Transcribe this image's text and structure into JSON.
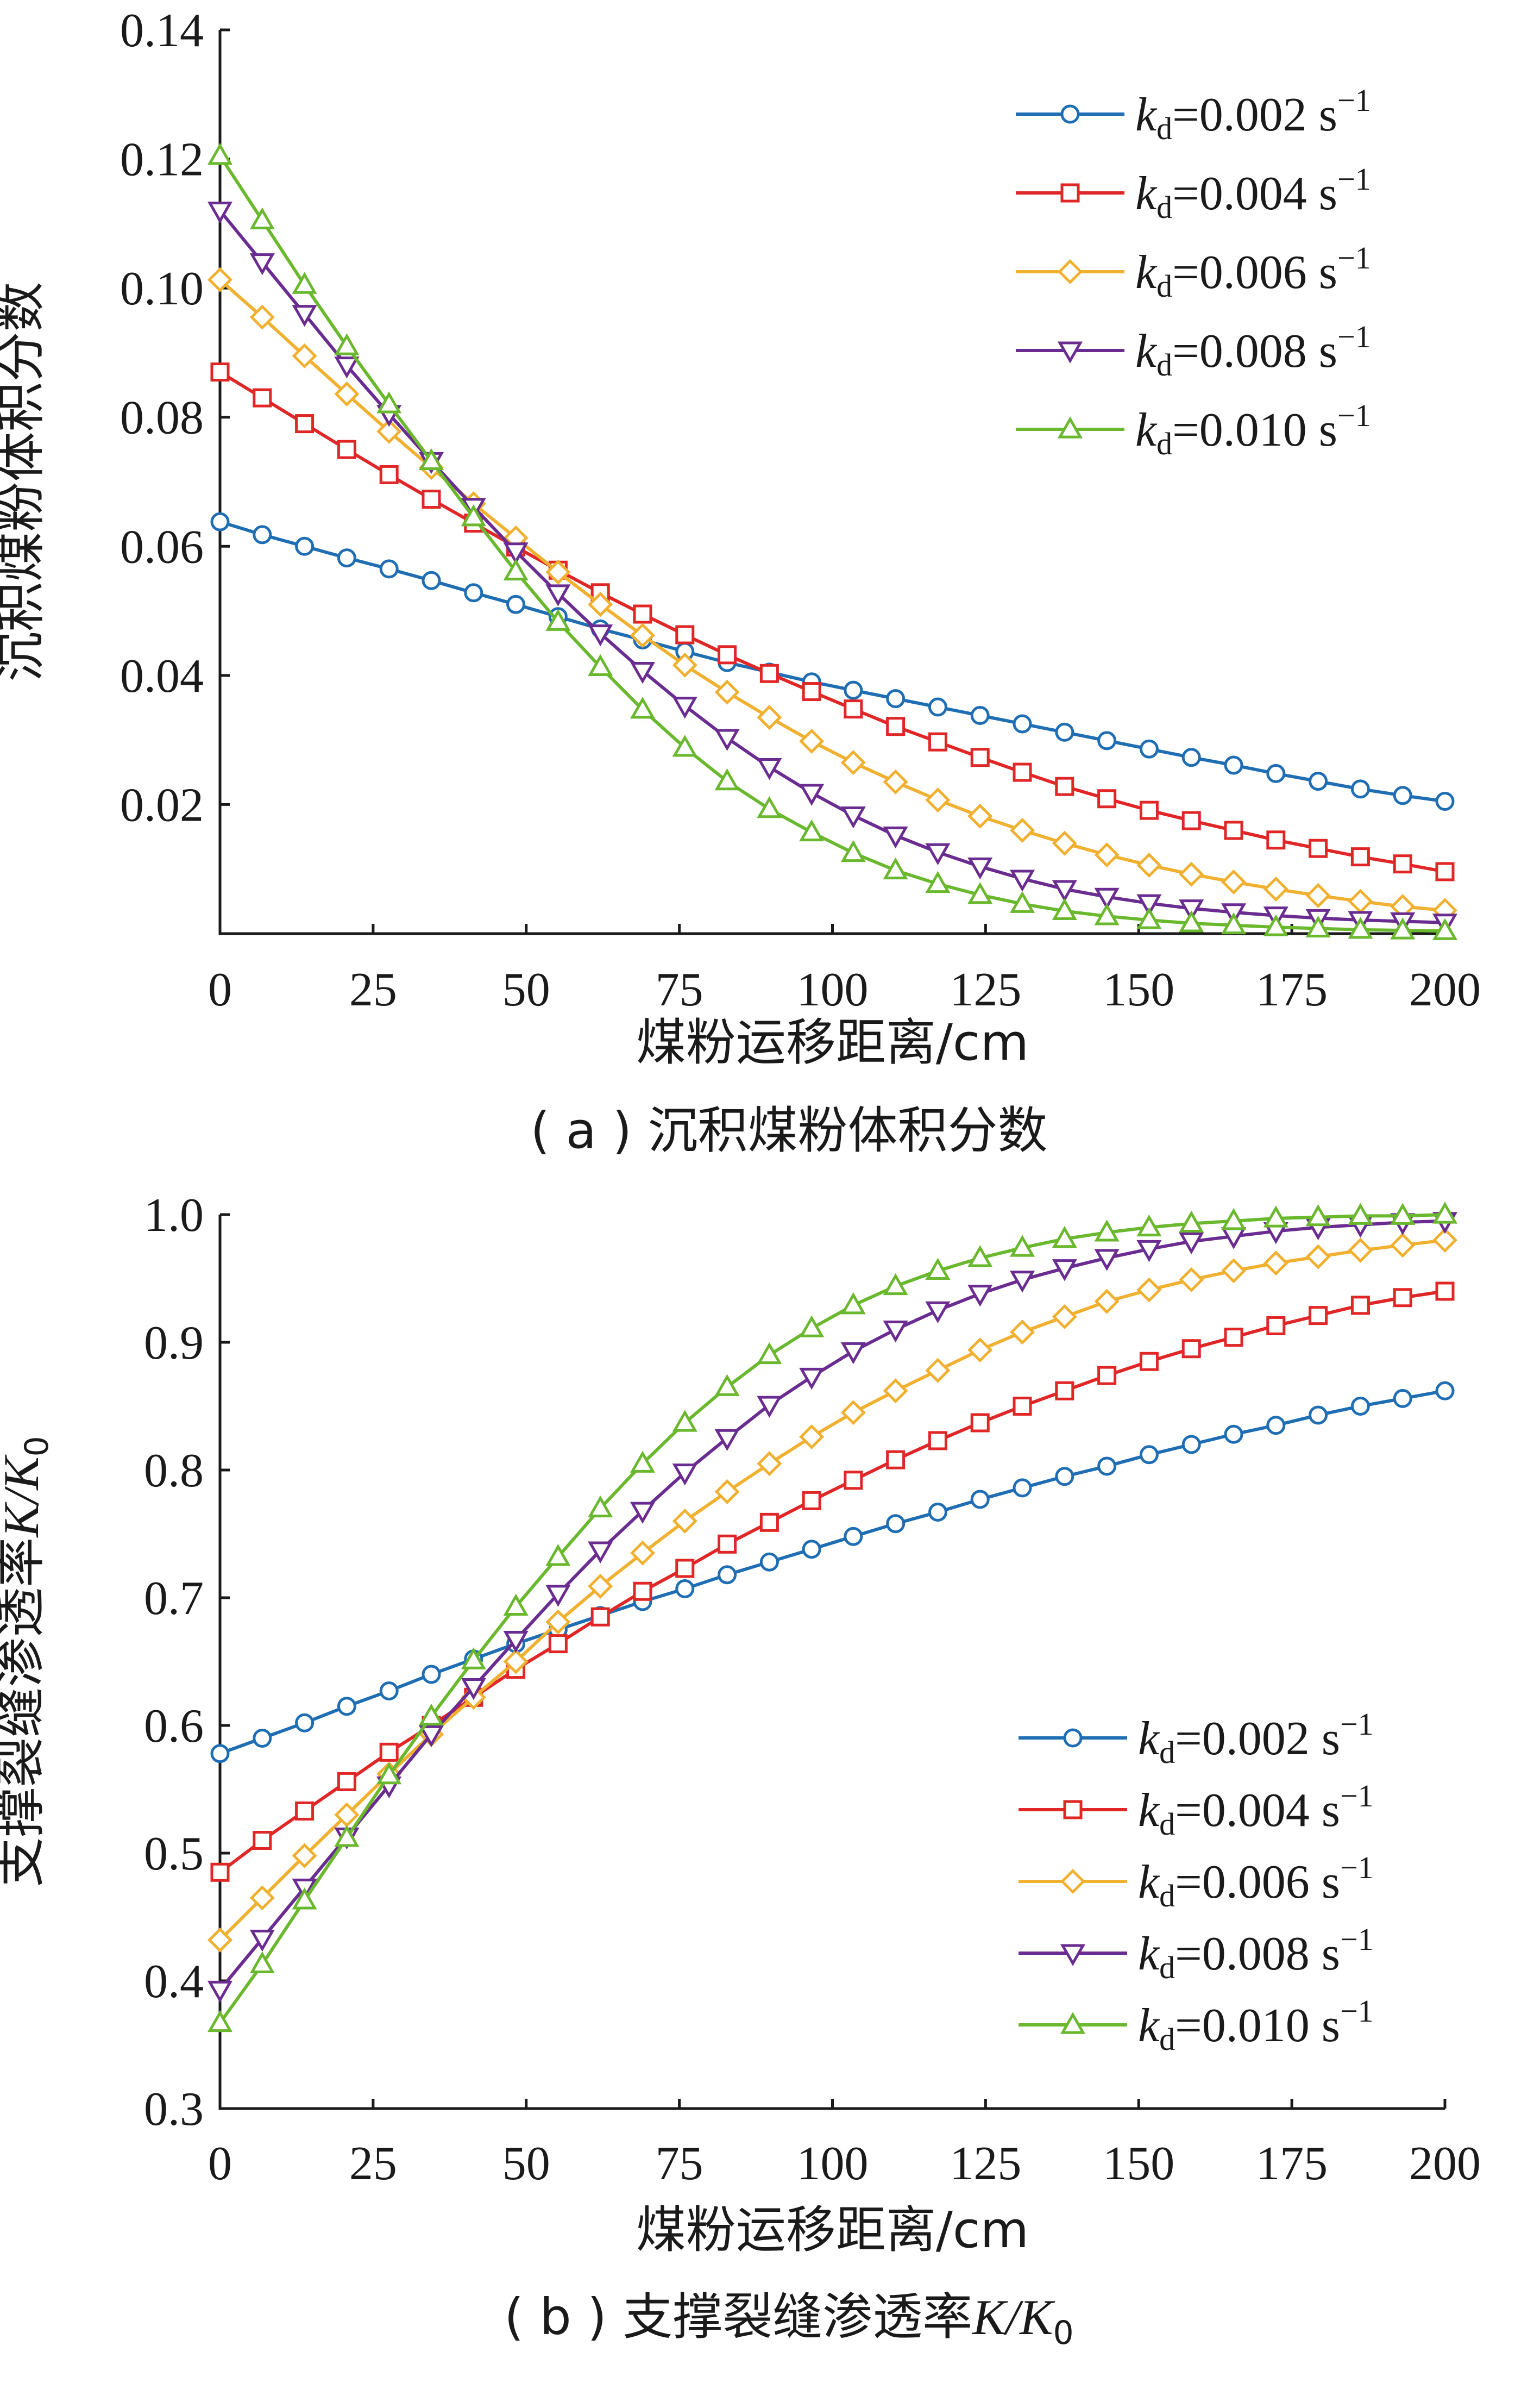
{
  "chart_data": [
    {
      "panel": "a",
      "type": "line",
      "caption": "( a ) 沉积煤粉体积分数",
      "xlabel": "煤粉运移距离/cm",
      "ylabel": "沉积煤粉体积分数",
      "xlim": [
        0,
        200
      ],
      "ylim": [
        0,
        0.14
      ],
      "xticks": [
        "0",
        "25",
        "50",
        "75",
        "100",
        "125",
        "150",
        "175",
        "200"
      ],
      "yticks": [
        "0.02",
        "0.04",
        "0.06",
        "0.08",
        "0.10",
        "0.12",
        "0.14"
      ],
      "legend_position": "top-right",
      "x": [
        0,
        6.9,
        13.8,
        20.7,
        27.6,
        34.5,
        41.4,
        48.3,
        55.2,
        62.1,
        69.0,
        75.9,
        82.8,
        89.7,
        96.6,
        103.4,
        110.3,
        117.2,
        124.1,
        131.0,
        137.9,
        144.8,
        151.7,
        158.6,
        165.5,
        172.4,
        179.3,
        186.2,
        193.1,
        200
      ],
      "series": [
        {
          "name": "kd=0.002 s-1",
          "label_main": "k",
          "label_sub": "d",
          "label_rest": "=0.002 s",
          "label_sup": "−1",
          "color": "#1f6eb4",
          "marker": "circle",
          "values": [
            0.0638,
            0.0618,
            0.06,
            0.0582,
            0.0565,
            0.0547,
            0.0528,
            0.051,
            0.0491,
            0.0472,
            0.0455,
            0.0437,
            0.042,
            0.0405,
            0.039,
            0.0377,
            0.0364,
            0.0351,
            0.0338,
            0.0325,
            0.0312,
            0.0299,
            0.0286,
            0.0273,
            0.0261,
            0.0248,
            0.0236,
            0.0224,
            0.0214,
            0.0205
          ]
        },
        {
          "name": "kd=0.004 s-1",
          "label_main": "k",
          "label_sub": "d",
          "label_rest": "=0.004 s",
          "label_sup": "−1",
          "color": "#e02626",
          "marker": "square",
          "values": [
            0.087,
            0.083,
            0.079,
            0.075,
            0.0711,
            0.0673,
            0.0636,
            0.0599,
            0.0563,
            0.0528,
            0.0495,
            0.0463,
            0.0432,
            0.0403,
            0.0375,
            0.0348,
            0.0321,
            0.0297,
            0.0273,
            0.025,
            0.0228,
            0.0209,
            0.0191,
            0.0175,
            0.016,
            0.0145,
            0.0132,
            0.0119,
            0.0108,
            0.0096
          ]
        },
        {
          "name": "kd=0.006 s-1",
          "label_main": "k",
          "label_sub": "d",
          "label_rest": "=0.006 s",
          "label_sup": "−1",
          "color": "#f0b030",
          "marker": "diamond",
          "values": [
            0.1013,
            0.0955,
            0.0895,
            0.0836,
            0.0778,
            0.0722,
            0.0666,
            0.0613,
            0.056,
            0.051,
            0.0462,
            0.0416,
            0.0374,
            0.0335,
            0.0298,
            0.0265,
            0.0235,
            0.0207,
            0.0182,
            0.016,
            0.014,
            0.0122,
            0.0106,
            0.0092,
            0.008,
            0.0069,
            0.0059,
            0.005,
            0.0042,
            0.0036
          ]
        },
        {
          "name": "kd=0.008 s-1",
          "label_main": "k",
          "label_sub": "d",
          "label_rest": "=0.008 s",
          "label_sup": "−1",
          "color": "#6a2c91",
          "marker": "triangle-down",
          "values": [
            0.112,
            0.104,
            0.096,
            0.088,
            0.0805,
            0.0732,
            0.0661,
            0.0592,
            0.0527,
            0.0465,
            0.0407,
            0.0353,
            0.0303,
            0.0258,
            0.0218,
            0.0183,
            0.0152,
            0.0126,
            0.0104,
            0.0085,
            0.0069,
            0.0057,
            0.0047,
            0.0039,
            0.0033,
            0.0028,
            0.0024,
            0.0021,
            0.0019,
            0.0017
          ]
        },
        {
          "name": "kd=0.010 s-1",
          "label_main": "k",
          "label_sub": "d",
          "label_rest": "=0.010 s",
          "label_sup": "−1",
          "color": "#6ab82e",
          "marker": "triangle-up",
          "values": [
            0.1205,
            0.1105,
            0.1005,
            0.091,
            0.082,
            0.0732,
            0.0645,
            0.0561,
            0.0483,
            0.0413,
            0.0347,
            0.0288,
            0.0236,
            0.0193,
            0.0157,
            0.0125,
            0.0098,
            0.0077,
            0.006,
            0.0046,
            0.0035,
            0.0027,
            0.0021,
            0.0016,
            0.0013,
            0.001,
            0.0008,
            0.0006,
            0.0005,
            0.0004
          ]
        }
      ]
    },
    {
      "panel": "b",
      "type": "line",
      "caption_main": "( b ) 支撑裂缝渗透率",
      "caption_var": "K/K",
      "caption_sub": "0",
      "xlabel": "煤粉运移距离/cm",
      "ylabel_main": "支撑裂缝渗透率",
      "ylabel_var": "K/K",
      "ylabel_sub": "0",
      "xlim": [
        0,
        200
      ],
      "ylim": [
        0.3,
        1.0
      ],
      "xticks": [
        "0",
        "25",
        "50",
        "75",
        "100",
        "125",
        "150",
        "175",
        "200"
      ],
      "yticks": [
        "0.3",
        "0.4",
        "0.5",
        "0.6",
        "0.7",
        "0.8",
        "0.9",
        "1.0"
      ],
      "legend_position": "bottom-right",
      "x": [
        0,
        6.9,
        13.8,
        20.7,
        27.6,
        34.5,
        41.4,
        48.3,
        55.2,
        62.1,
        69.0,
        75.9,
        82.8,
        89.7,
        96.6,
        103.4,
        110.3,
        117.2,
        124.1,
        131.0,
        137.9,
        144.8,
        151.7,
        158.6,
        165.5,
        172.4,
        179.3,
        186.2,
        193.1,
        200
      ],
      "series": [
        {
          "name": "kd=0.002 s-1",
          "label_main": "k",
          "label_sub": "d",
          "label_rest": "=0.002 s",
          "label_sup": "−1",
          "color": "#1f6eb4",
          "marker": "circle",
          "values": [
            0.578,
            0.59,
            0.602,
            0.615,
            0.627,
            0.64,
            0.652,
            0.664,
            0.675,
            0.686,
            0.697,
            0.707,
            0.718,
            0.728,
            0.738,
            0.748,
            0.758,
            0.767,
            0.777,
            0.786,
            0.795,
            0.803,
            0.812,
            0.82,
            0.828,
            0.835,
            0.843,
            0.85,
            0.856,
            0.862
          ]
        },
        {
          "name": "kd=0.004 s-1",
          "label_main": "k",
          "label_sub": "d",
          "label_rest": "=0.004 s",
          "label_sup": "−1",
          "color": "#e02626",
          "marker": "square",
          "values": [
            0.485,
            0.51,
            0.533,
            0.556,
            0.579,
            0.6,
            0.622,
            0.644,
            0.664,
            0.685,
            0.705,
            0.723,
            0.742,
            0.759,
            0.776,
            0.792,
            0.808,
            0.823,
            0.837,
            0.85,
            0.862,
            0.874,
            0.885,
            0.895,
            0.904,
            0.913,
            0.921,
            0.929,
            0.935,
            0.94
          ]
        },
        {
          "name": "kd=0.006 s-1",
          "label_main": "k",
          "label_sub": "d",
          "label_rest": "=0.006 s",
          "label_sup": "−1",
          "color": "#f0b030",
          "marker": "diamond",
          "values": [
            0.432,
            0.465,
            0.498,
            0.53,
            0.562,
            0.593,
            0.622,
            0.65,
            0.681,
            0.709,
            0.735,
            0.76,
            0.783,
            0.805,
            0.826,
            0.845,
            0.862,
            0.878,
            0.894,
            0.908,
            0.92,
            0.932,
            0.941,
            0.949,
            0.956,
            0.962,
            0.967,
            0.972,
            0.976,
            0.98
          ]
        },
        {
          "name": "kd=0.008 s-1",
          "label_main": "k",
          "label_sub": "d",
          "label_rest": "=0.008 s",
          "label_sup": "−1",
          "color": "#6a2c91",
          "marker": "triangle-down",
          "values": [
            0.393,
            0.433,
            0.473,
            0.513,
            0.553,
            0.593,
            0.63,
            0.667,
            0.703,
            0.737,
            0.768,
            0.798,
            0.825,
            0.851,
            0.873,
            0.893,
            0.91,
            0.925,
            0.938,
            0.949,
            0.958,
            0.966,
            0.973,
            0.979,
            0.983,
            0.987,
            0.99,
            0.992,
            0.994,
            0.995
          ]
        },
        {
          "name": "kd=0.010 s-1",
          "label_main": "k",
          "label_sub": "d",
          "label_rest": "=0.010 s",
          "label_sup": "−1",
          "color": "#6ab82e",
          "marker": "triangle-up",
          "values": [
            0.367,
            0.413,
            0.463,
            0.512,
            0.561,
            0.607,
            0.651,
            0.693,
            0.732,
            0.77,
            0.805,
            0.837,
            0.865,
            0.89,
            0.911,
            0.929,
            0.944,
            0.956,
            0.966,
            0.974,
            0.981,
            0.986,
            0.99,
            0.993,
            0.995,
            0.997,
            0.998,
            0.999,
            0.999,
            1.0
          ]
        }
      ]
    }
  ]
}
